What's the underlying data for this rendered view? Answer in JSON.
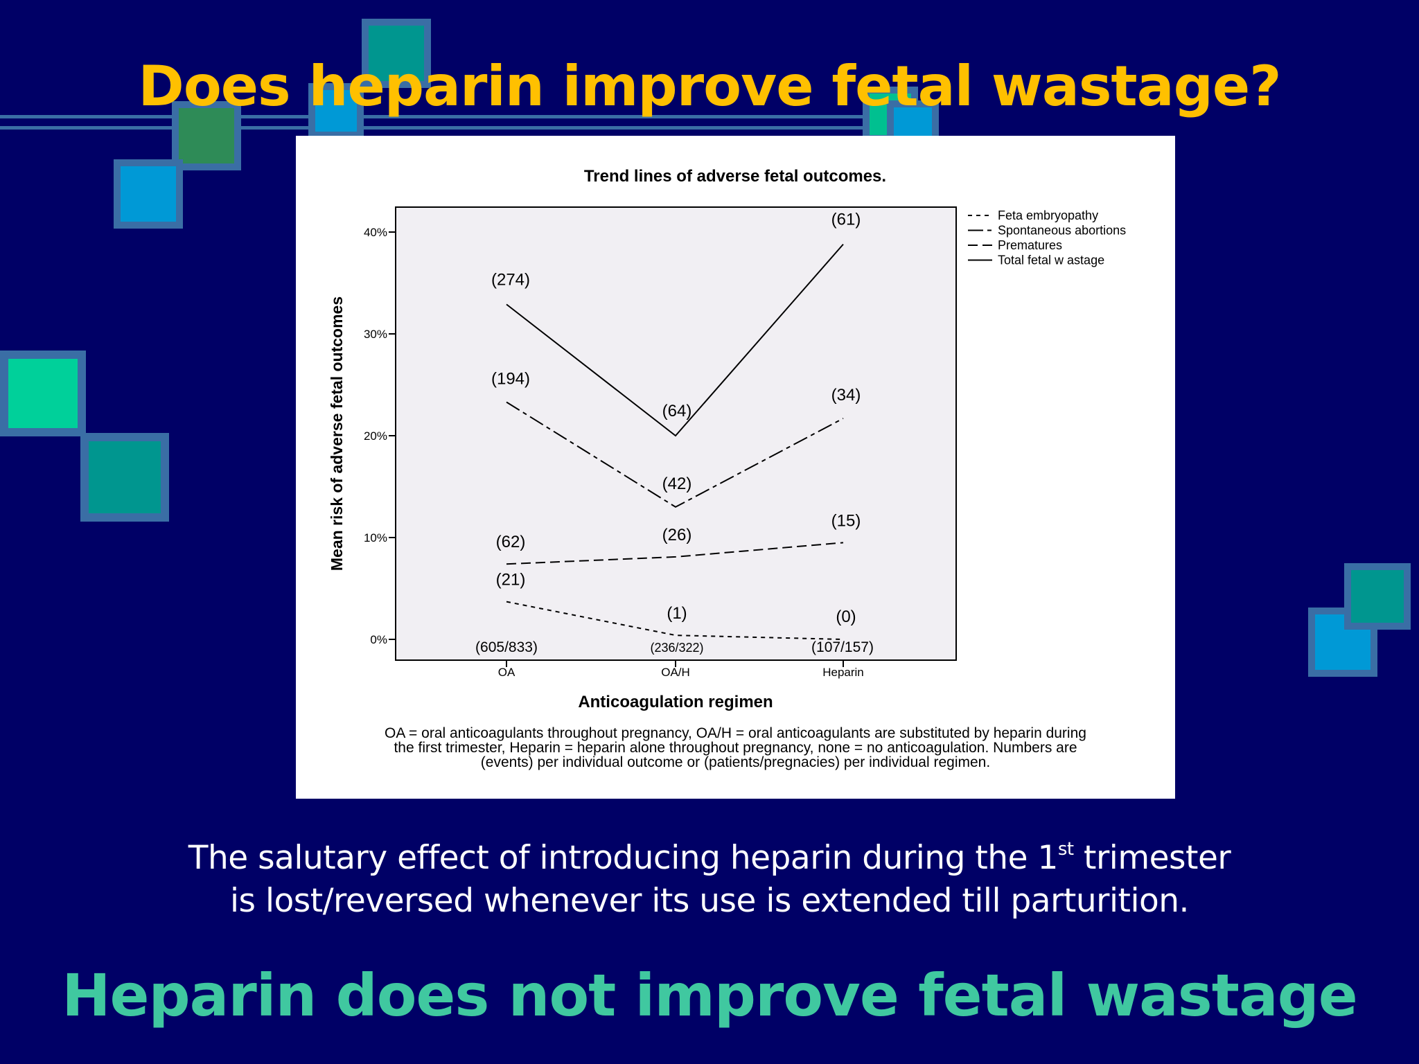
{
  "slide": {
    "title": "Does heparin improve fetal wastage?",
    "body_line1_pre": "The salutary effect of introducing heparin during the 1",
    "body_line1_sup": "st",
    "body_line1_post": " trimester",
    "body_line2": "is lost/reversed whenever its use is extended till parturition.",
    "conclusion": "Heparin does not improve fetal wastage",
    "colors": {
      "background": "#000066",
      "title": "#FFC000",
      "conclusion": "#40C8A0",
      "body_text": "#FFFFFF"
    }
  },
  "chart_data": {
    "type": "line",
    "title": "Trend lines of adverse fetal outcomes.",
    "xlabel": "Anticoagulation regimen",
    "ylabel": "Mean risk of adverse fetal outcomes",
    "categories": [
      "OA",
      "OA/H",
      "Heparin"
    ],
    "category_labels": [
      "(605/833)",
      "(236/322)",
      "(107/157)"
    ],
    "yticks": [
      "0%",
      "10%",
      "20%",
      "30%",
      "40%"
    ],
    "ylim": [
      -2,
      42.5
    ],
    "grid": false,
    "legend_position": "right",
    "series": [
      {
        "name": "Feta embryopathy",
        "dash": "short",
        "values": [
          3.7,
          0.4,
          0.0
        ],
        "labels": [
          "(21)",
          "(1)",
          "(0)"
        ]
      },
      {
        "name": "Spontaneous abortions",
        "dash": "long-short",
        "values": [
          23.3,
          13.0,
          21.7
        ],
        "labels": [
          "(194)",
          "(42)",
          "(34)"
        ]
      },
      {
        "name": "Prematures",
        "dash": "medium",
        "values": [
          7.4,
          8.1,
          9.5
        ],
        "labels": [
          "(62)",
          "(26)",
          "(15)"
        ]
      },
      {
        "name": "Total fetal w astage",
        "dash": "solid",
        "values": [
          32.9,
          20.0,
          38.8
        ],
        "labels": [
          "(274)",
          "(64)",
          "(61)"
        ]
      }
    ],
    "footnote_lines": [
      "OA = oral anticoagulants throughout pregnancy, OA/H = oral anticoagulants are substituted by heparin during",
      "the first trimester, Heparin = heparin alone throughout pregnancy, none = no anticoagulation. Numbers are",
      "(events) per individual outcome or (patients/pregnacies) per individual regimen."
    ]
  }
}
